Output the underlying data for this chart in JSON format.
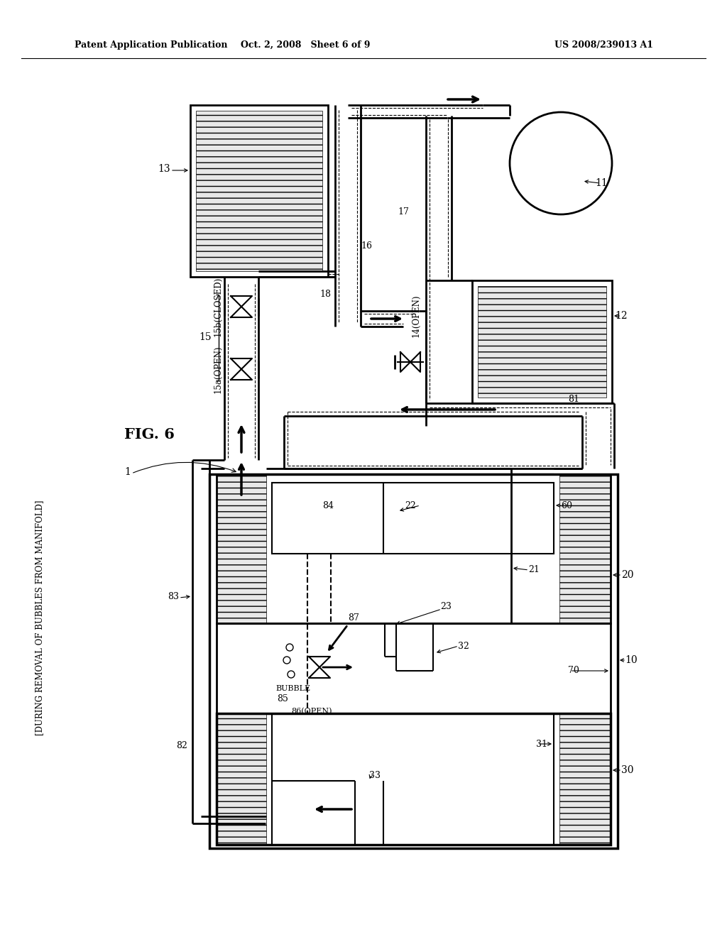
{
  "bg_color": "#ffffff",
  "lc": "#000000",
  "header_left": "Patent Application Publication",
  "header_center": "Oct. 2, 2008   Sheet 6 of 9",
  "header_right": "US 2008/239013 A1",
  "fig_label": "FIG. 6",
  "sidebar": "[DURING REMOVAL OF BUBBLES FROM MANIFOLD]",
  "hatch_color": "#aaaaaa"
}
